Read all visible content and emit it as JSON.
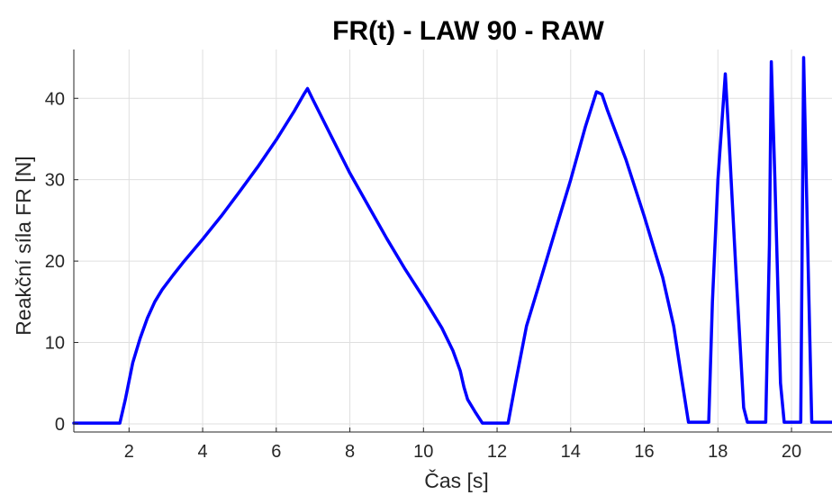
{
  "chart_data": {
    "type": "line",
    "title": "FR(t) - LAW 90 - RAW",
    "xlabel": "Čas [s]",
    "ylabel": "Reakční síla FR [N]",
    "xlim": [
      0.5,
      21.1
    ],
    "ylim": [
      -1,
      46
    ],
    "xticks": [
      2,
      4,
      6,
      8,
      10,
      12,
      14,
      16,
      18,
      20
    ],
    "yticks": [
      0,
      10,
      20,
      30,
      40
    ],
    "grid": true,
    "legend": "none",
    "series": [
      {
        "color": "#0000ff",
        "x": [
          0.5,
          1.75,
          1.9,
          2.1,
          2.3,
          2.5,
          2.7,
          2.9,
          3.2,
          3.5,
          4.0,
          4.5,
          5.0,
          5.5,
          6.0,
          6.5,
          6.75,
          6.85,
          7.0,
          7.5,
          8.0,
          8.5,
          9.0,
          9.5,
          10.0,
          10.5,
          10.8,
          11.0,
          11.1,
          11.2,
          11.4,
          11.6,
          12.3,
          12.5,
          12.8,
          13.2,
          13.6,
          14.0,
          14.4,
          14.7,
          14.85,
          15.0,
          15.5,
          16.0,
          16.5,
          16.8,
          17.0,
          17.2,
          17.75,
          17.85,
          18.0,
          18.2,
          18.3,
          18.5,
          18.7,
          18.8,
          19.3,
          19.4,
          19.45,
          19.55,
          19.7,
          19.8,
          20.25,
          20.33,
          20.45,
          20.55,
          21.1
        ],
        "y": [
          0.1,
          0.1,
          3,
          7.5,
          10.5,
          13,
          15,
          16.5,
          18.3,
          20,
          22.7,
          25.5,
          28.5,
          31.6,
          34.9,
          38.5,
          40.5,
          41.2,
          39.8,
          35.3,
          30.8,
          26.8,
          22.8,
          19,
          15.5,
          11.8,
          9,
          6.5,
          4.5,
          3,
          1.5,
          0.1,
          0.1,
          5,
          12,
          18,
          24,
          30,
          36.5,
          40.8,
          40.5,
          38.5,
          32.5,
          25.5,
          18,
          12,
          6,
          0.2,
          0.2,
          15,
          30,
          43,
          35,
          18,
          2,
          0.2,
          0.2,
          22,
          44.5,
          30,
          5,
          0.2,
          0.2,
          45,
          20,
          0.2,
          0.2
        ]
      }
    ]
  }
}
